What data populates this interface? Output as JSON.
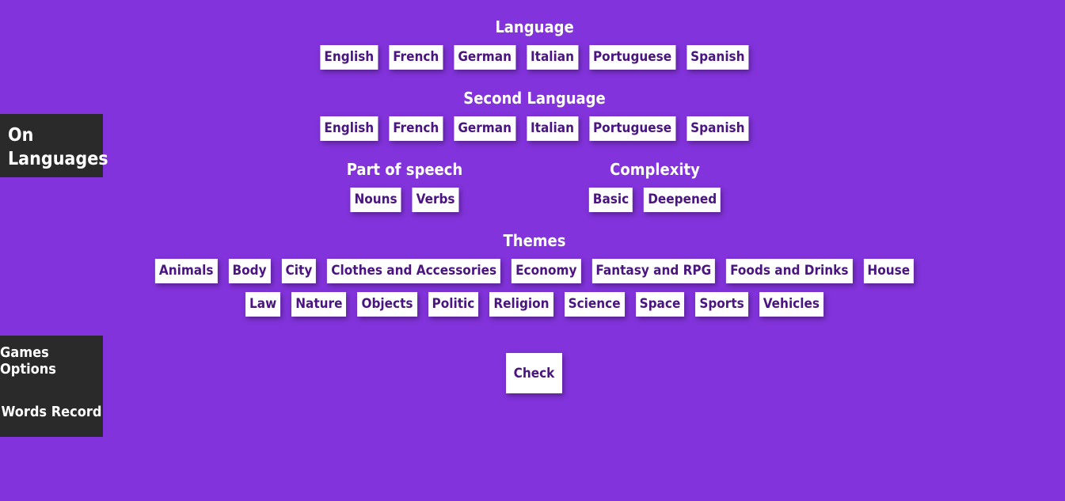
{
  "sidebar": {
    "brand_line1": "On",
    "brand_line2": "Languages",
    "nav": [
      "Games Options",
      "Words Record"
    ]
  },
  "language": {
    "title": "Language",
    "options": [
      "English",
      "French",
      "German",
      "Italian",
      "Portuguese",
      "Spanish"
    ]
  },
  "second_language": {
    "title": "Second Language",
    "options": [
      "English",
      "French",
      "German",
      "Italian",
      "Portuguese",
      "Spanish"
    ]
  },
  "part_of_speech": {
    "title": "Part of speech",
    "options": [
      "Nouns",
      "Verbs"
    ]
  },
  "complexity": {
    "title": "Complexity",
    "options": [
      "Basic",
      "Deepened"
    ]
  },
  "themes": {
    "title": "Themes",
    "row1": [
      "Animals",
      "Body",
      "City",
      "Clothes and Accessories",
      "Economy",
      "Fantasy and RPG",
      "Foods and Drinks",
      "House"
    ],
    "row2": [
      "Law",
      "Nature",
      "Objects",
      "Politic",
      "Religion",
      "Science",
      "Space",
      "Sports",
      "Vehicles"
    ]
  },
  "check_label": "Check"
}
